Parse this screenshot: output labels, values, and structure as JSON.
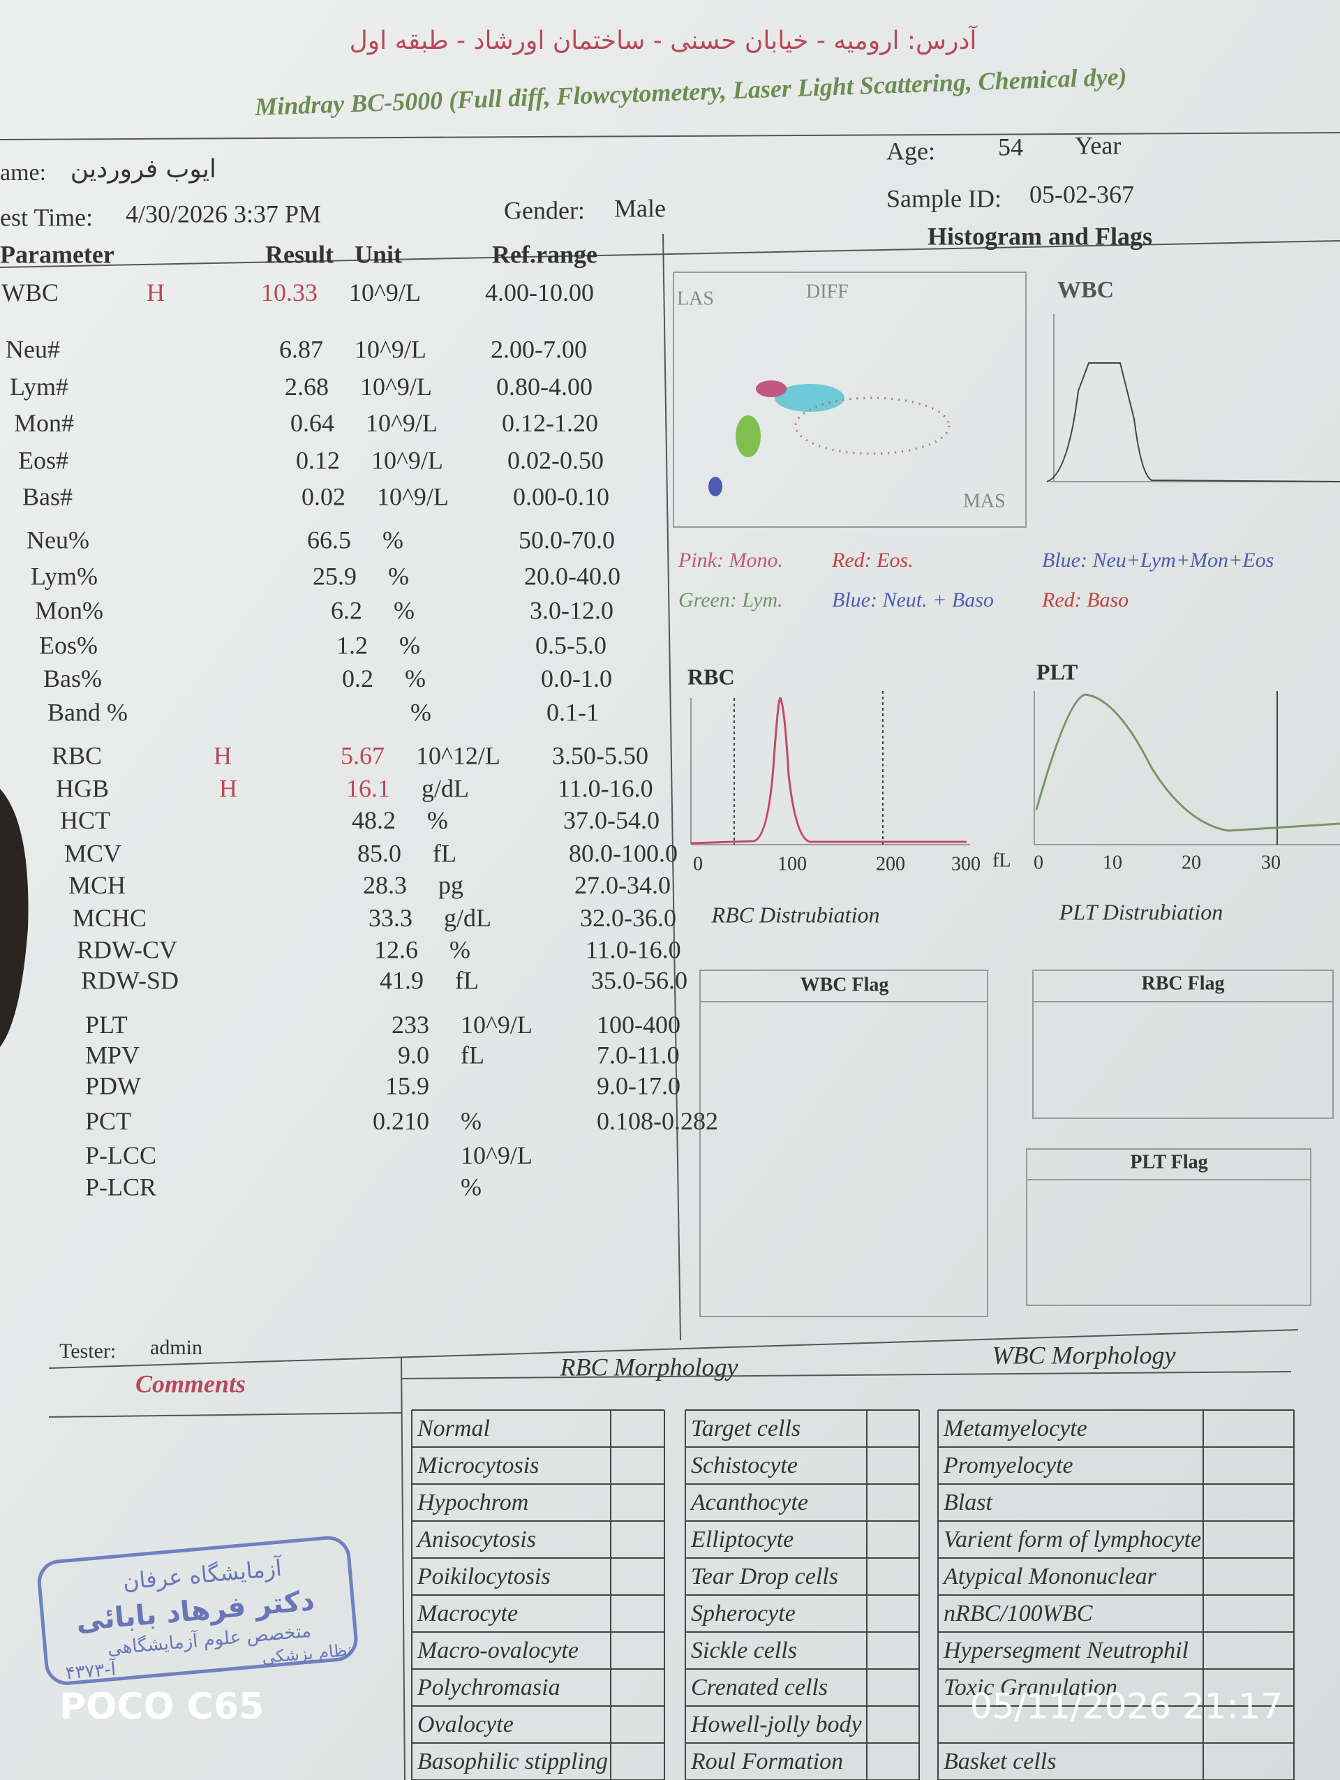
{
  "header": {
    "address": "آدرس: ارومیه - خیابان حسنی - ساختمان اورشاد - طبقه اول",
    "device": "Mindray BC-5000 (Full diff, Flowcytometery, Laser Light Scattering, Chemical dye)"
  },
  "patient": {
    "name_label": "ame:",
    "name": "ایوب فروردین",
    "test_time_label": "est Time:",
    "test_time": "4/30/2026 3:37 PM",
    "gender_label": "Gender:",
    "gender": "Male",
    "age_label": "Age:",
    "age": "54",
    "age_unit": "Year",
    "sample_label": "Sample ID:",
    "sample_id": "05-02-367"
  },
  "results": {
    "columns": [
      "Parameter",
      "Result",
      "Unit",
      "Ref.range"
    ],
    "rows": [
      {
        "name": "WBC",
        "flag": "H",
        "result": "10.33",
        "unit": "10^9/L",
        "ref": "4.00-10.00"
      },
      {
        "name": "Neu#",
        "result": "6.87",
        "unit": "10^9/L",
        "ref": "2.00-7.00"
      },
      {
        "name": "Lym#",
        "result": "2.68",
        "unit": "10^9/L",
        "ref": "0.80-4.00"
      },
      {
        "name": "Mon#",
        "result": "0.64",
        "unit": "10^9/L",
        "ref": "0.12-1.20"
      },
      {
        "name": "Eos#",
        "result": "0.12",
        "unit": "10^9/L",
        "ref": "0.02-0.50"
      },
      {
        "name": "Bas#",
        "result": "0.02",
        "unit": "10^9/L",
        "ref": "0.00-0.10"
      },
      {
        "name": "Neu%",
        "result": "66.5",
        "unit": "%",
        "ref": "50.0-70.0"
      },
      {
        "name": "Lym%",
        "result": "25.9",
        "unit": "%",
        "ref": "20.0-40.0"
      },
      {
        "name": "Mon%",
        "result": "6.2",
        "unit": "%",
        "ref": "3.0-12.0"
      },
      {
        "name": "Eos%",
        "result": "1.2",
        "unit": "%",
        "ref": "0.5-5.0"
      },
      {
        "name": "Bas%",
        "result": "0.2",
        "unit": "%",
        "ref": "0.0-1.0"
      },
      {
        "name": "Band %",
        "unit": "%",
        "ref": "0.1-1"
      },
      {
        "name": "RBC",
        "flag": "H",
        "result": "5.67",
        "unit": "10^12/L",
        "ref": "3.50-5.50"
      },
      {
        "name": "HGB",
        "flag": "H",
        "result": "16.1",
        "unit": "g/dL",
        "ref": "11.0-16.0"
      },
      {
        "name": "HCT",
        "result": "48.2",
        "unit": "%",
        "ref": "37.0-54.0"
      },
      {
        "name": "MCV",
        "result": "85.0",
        "unit": "fL",
        "ref": "80.0-100.0"
      },
      {
        "name": "MCH",
        "result": "28.3",
        "unit": "pg",
        "ref": "27.0-34.0"
      },
      {
        "name": "MCHC",
        "result": "33.3",
        "unit": "g/dL",
        "ref": "32.0-36.0"
      },
      {
        "name": "RDW-CV",
        "result": "12.6",
        "unit": "%",
        "ref": "11.0-16.0"
      },
      {
        "name": "RDW-SD",
        "result": "41.9",
        "unit": "fL",
        "ref": "35.0-56.0"
      },
      {
        "name": "PLT",
        "result": "233",
        "unit": "10^9/L",
        "ref": "100-400"
      },
      {
        "name": "MPV",
        "result": "9.0",
        "unit": "fL",
        "ref": "7.0-11.0"
      },
      {
        "name": "PDW",
        "result": "15.9",
        "ref": "9.0-17.0"
      },
      {
        "name": "PCT",
        "result": "0.210",
        "unit": "%",
        "ref": "0.108-0.282"
      },
      {
        "name": "P-LCC",
        "unit": "10^9/L"
      },
      {
        "name": "P-LCR",
        "unit": "%"
      }
    ]
  },
  "histograms": {
    "title": "Histogram and Flags",
    "scatter": {
      "las": "LAS",
      "diff": "DIFF",
      "mas": "MAS"
    },
    "wbc": "WBC",
    "legend": [
      {
        "text": "Pink: Mono.",
        "color": "#c2577f"
      },
      {
        "text": "Red: Eos.",
        "color": "#c0403e"
      },
      {
        "text": "Blue: Neu+Lym+Mon+Eos",
        "color": "#4d5cb0"
      },
      {
        "text": "Green: Lym.",
        "color": "#6f9463"
      },
      {
        "text": "Blue: Neut. + Baso",
        "color": "#4d5cb0"
      },
      {
        "text": "Red: Baso",
        "color": "#c0403e"
      }
    ],
    "rbc": {
      "title": "RBC",
      "ticks": [
        "0",
        "100",
        "200",
        "300"
      ],
      "unit": "fL",
      "caption": "RBC Distrubiation"
    },
    "plt": {
      "title": "PLT",
      "ticks": [
        "0",
        "10",
        "20",
        "30"
      ],
      "caption": "PLT Distrubiation"
    }
  },
  "flags": {
    "wbc": "WBC Flag",
    "rbc": "RBC Flag",
    "plt": "PLT Flag"
  },
  "footer": {
    "tester_label": "Tester:",
    "tester": "admin",
    "comments": "Comments",
    "rbc_morphology": {
      "title": "RBC Morphology",
      "column_1": [
        "Normal",
        "Microcytosis",
        "Hypochrom",
        "Anisocytosis",
        "Poikilocytosis",
        "Macrocyte",
        "Macro-ovalocyte",
        "Polychromasia",
        "Ovalocyte",
        "Basophilic stippling"
      ],
      "column_2": [
        "Target cells",
        "Schistocyte",
        "Acanthocyte",
        "Elliptocyte",
        "Tear Drop cells",
        "Spherocyte",
        "Sickle cells",
        "Crenated cells",
        "Howell-jolly body",
        "Roul Formation"
      ]
    },
    "wbc_morphology": {
      "title": "WBC Morphology",
      "items": [
        "Metamyelocyte",
        "Promyelocyte",
        "Blast",
        "Varient form of lymphocyte",
        "Atypical Mononuclear",
        "nRBC/100WBC",
        "Hypersegment Neutrophil",
        "Toxic Granulation",
        "Basket cells"
      ]
    }
  },
  "stamp": {
    "lab": "آزمایشگاه عرفان",
    "doctor": "دکتر فرهاد بابائی",
    "specialty": "متخصص علوم آزمایشگاهی",
    "council": "نظام پزشکی",
    "number": "۴۳۷۳-آ"
  },
  "watermark": {
    "device": "POCO C65",
    "datetime": "05/11/2026 21:17"
  }
}
